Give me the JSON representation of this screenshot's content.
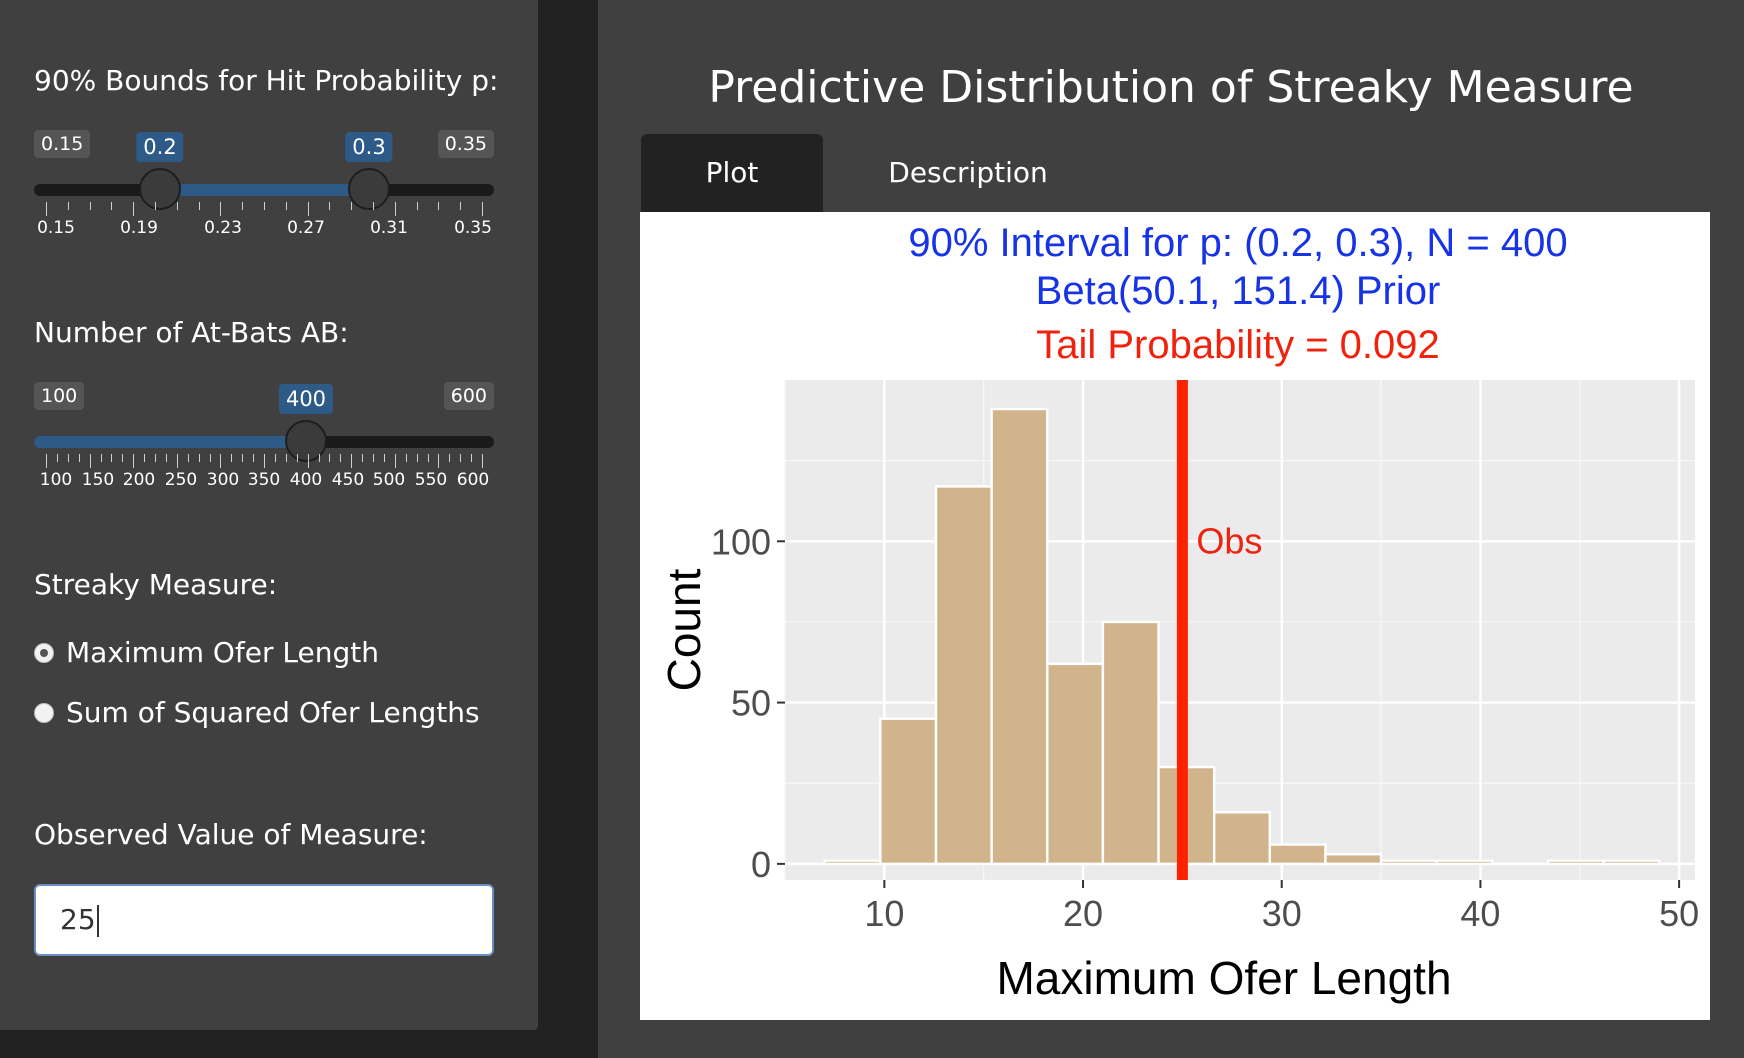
{
  "sidebar": {
    "bounds": {
      "label": "90% Bounds for Hit Probability p:",
      "min_label": "0.15",
      "max_label": "0.35",
      "low_value": "0.2",
      "high_value": "0.3",
      "tick_labels": [
        "0.15",
        "0.19",
        "0.23",
        "0.27",
        "0.31",
        "0.35"
      ]
    },
    "atbats": {
      "label": "Number of At-Bats AB:",
      "min_label": "100",
      "max_label": "600",
      "value": "400",
      "tick_labels": [
        "100",
        "150",
        "200",
        "250",
        "300",
        "350",
        "400",
        "450",
        "500",
        "550",
        "600"
      ]
    },
    "measure": {
      "label": "Streaky Measure:",
      "options": [
        {
          "label": "Maximum Ofer Length",
          "selected": true
        },
        {
          "label": "Sum of Squared Ofer Lengths",
          "selected": false
        }
      ]
    },
    "observed": {
      "label": "Observed Value of Measure:",
      "value": "25"
    }
  },
  "main": {
    "title": "Predictive Distribution of Streaky Measure",
    "tabs": [
      {
        "label": "Plot",
        "active": true
      },
      {
        "label": "Description",
        "active": false
      }
    ]
  },
  "colors": {
    "title_blue": "#1733e6",
    "title_red": "#f0220e",
    "bar_fill": "#d2b48c",
    "obs_line": "#ff2200",
    "slider_fill": "#2e5a88"
  },
  "chart_data": {
    "type": "bar",
    "title_lines": [
      "90% Interval for p: (0.2, 0.3), N = 400",
      "Beta(50.1, 151.4) Prior"
    ],
    "subtitle": "Tail Probability = 0.092",
    "xlabel": "Maximum Ofer Length",
    "ylabel": "Count",
    "xlim": [
      5,
      50.8
    ],
    "ylim": [
      -5,
      150
    ],
    "x_ticks": [
      10,
      20,
      30,
      40,
      50
    ],
    "y_ticks": [
      0,
      50,
      100
    ],
    "bin_width": 2.8,
    "bins": [
      {
        "x": 8.4,
        "count": 1
      },
      {
        "x": 11.2,
        "count": 45
      },
      {
        "x": 14.0,
        "count": 117
      },
      {
        "x": 16.8,
        "count": 141
      },
      {
        "x": 19.6,
        "count": 62
      },
      {
        "x": 22.4,
        "count": 75
      },
      {
        "x": 25.2,
        "count": 30
      },
      {
        "x": 28.0,
        "count": 16
      },
      {
        "x": 30.8,
        "count": 6
      },
      {
        "x": 33.6,
        "count": 3
      },
      {
        "x": 36.4,
        "count": 1
      },
      {
        "x": 39.2,
        "count": 1
      },
      {
        "x": 42.0,
        "count": 0
      },
      {
        "x": 44.8,
        "count": 1
      },
      {
        "x": 47.6,
        "count": 1
      }
    ],
    "observed": 25,
    "observed_label": "Obs",
    "grid": true
  }
}
